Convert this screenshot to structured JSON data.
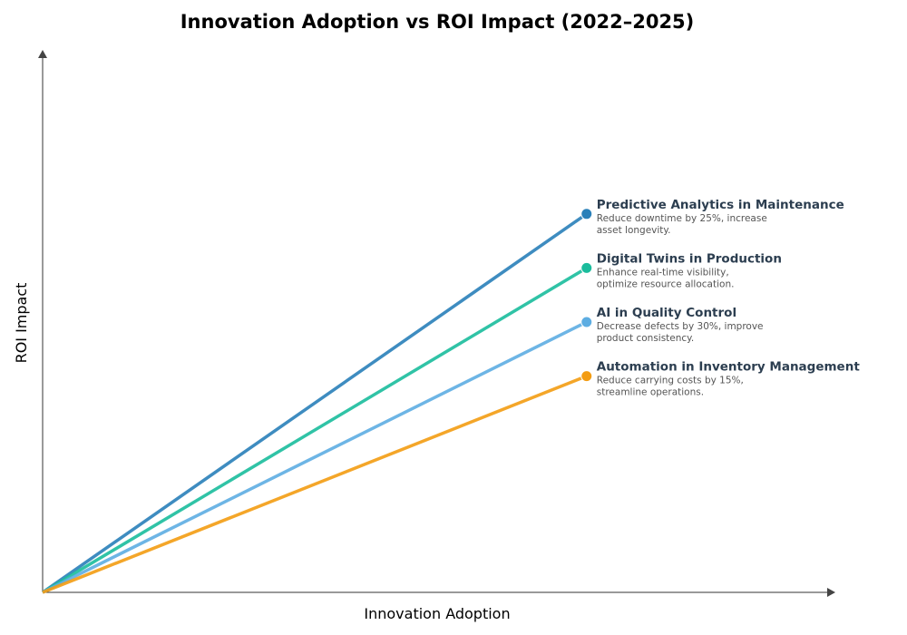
{
  "chart_data": {
    "type": "line",
    "title": "Innovation Adoption vs ROI Impact (2022–2025)",
    "xlabel": "Innovation Adoption",
    "ylabel": "ROI Impact",
    "xlim": [
      0,
      10
    ],
    "ylim": [
      0,
      10
    ],
    "grid": false,
    "ticks": false,
    "series": [
      {
        "name": "Predictive Analytics in Maintenance",
        "description": [
          "Reduce downtime by 25%, increase",
          "asset longevity."
        ],
        "color": "#2980b9",
        "x": [
          0,
          6.87
        ],
        "y": [
          0,
          7
        ]
      },
      {
        "name": "Digital Twins in Production",
        "description": [
          "Enhance real-time visibility,",
          "optimize resource allocation."
        ],
        "color": "#1abc9c",
        "x": [
          0,
          6.87
        ],
        "y": [
          0,
          6
        ]
      },
      {
        "name": "AI in Quality Control",
        "description": [
          "Decrease defects by 30%, improve",
          "product consistency."
        ],
        "color": "#5dade2",
        "x": [
          0,
          6.87
        ],
        "y": [
          0,
          5
        ]
      },
      {
        "name": "Automation in Inventory Management",
        "description": [
          "Reduce carrying costs by 15%,",
          "streamline operations."
        ],
        "color": "#f39c12",
        "x": [
          0,
          6.87
        ],
        "y": [
          0,
          4
        ]
      }
    ]
  }
}
